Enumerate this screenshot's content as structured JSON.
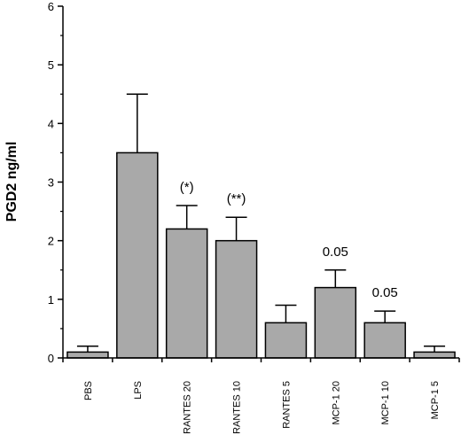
{
  "chart_data": {
    "type": "bar",
    "categories": [
      "PBS",
      "LPS",
      "RANTES 20",
      "RANTES 10",
      "RANTES 5",
      "MCP-1 20",
      "MCP-1 10",
      "MCP-1 5"
    ],
    "values": [
      0.1,
      3.5,
      2.2,
      2.0,
      0.6,
      1.2,
      0.6,
      0.1
    ],
    "errors": [
      0.1,
      1.0,
      0.4,
      0.4,
      0.3,
      0.3,
      0.2,
      0.1
    ],
    "annotations": [
      "",
      "",
      "(*)",
      "(**)",
      "",
      "0.05",
      "0.05",
      ""
    ],
    "xlabel": "",
    "ylabel": "PGD2 ng/ml",
    "ylim": [
      0,
      6
    ],
    "yticks": [
      "0",
      "1",
      "2",
      "3",
      "4",
      "5",
      "6"
    ],
    "grid": false,
    "bar_color": "#a9a9a9",
    "axis_color": "#000000"
  }
}
